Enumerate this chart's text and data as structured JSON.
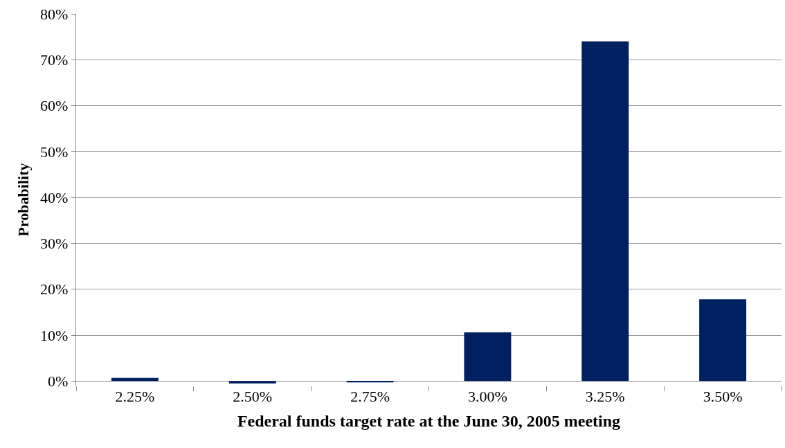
{
  "chart_data": {
    "type": "bar",
    "xlabel": "Federal funds target rate at the June 30, 2005 meeting",
    "ylabel": "Probability",
    "categories": [
      "2.25%",
      "2.50%",
      "2.75%",
      "3.00%",
      "3.25%",
      "3.50%"
    ],
    "values": [
      0.7,
      -0.5,
      -0.3,
      10.6,
      74.0,
      17.8
    ],
    "color": "#002060",
    "ylim": [
      -1,
      80
    ],
    "yticks": [
      {
        "value": 0,
        "label": "0%"
      },
      {
        "value": 10,
        "label": "10%"
      },
      {
        "value": 20,
        "label": "20%"
      },
      {
        "value": 30,
        "label": "30%"
      },
      {
        "value": 40,
        "label": "40%"
      },
      {
        "value": 50,
        "label": "50%"
      },
      {
        "value": 60,
        "label": "60%"
      },
      {
        "value": 70,
        "label": "70%"
      },
      {
        "value": 80,
        "label": "80%"
      }
    ],
    "grid": "y"
  }
}
